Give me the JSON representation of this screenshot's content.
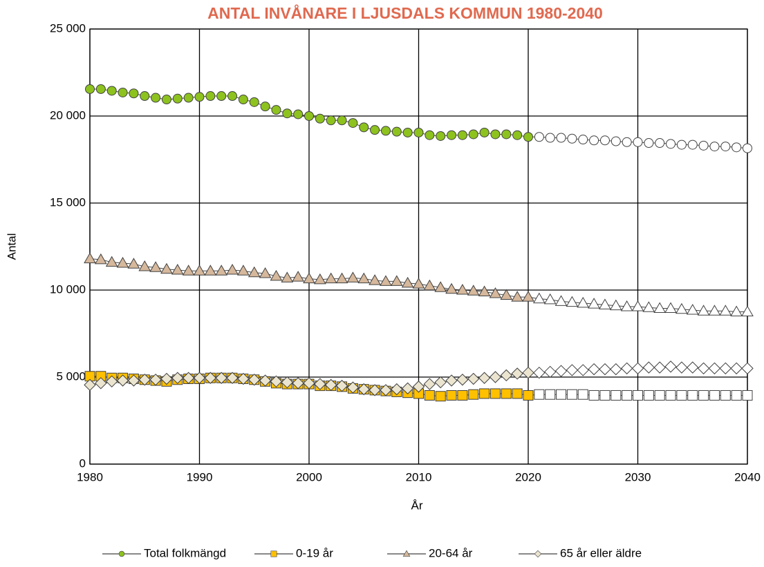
{
  "chart_data": {
    "type": "line",
    "title": "ANTAL INVÅNARE I LJUSDALS KOMMUN 1980-2040",
    "title_color": "#e0694f",
    "x_label": "År",
    "y_label": "Antal",
    "x": [
      1980,
      1981,
      1982,
      1983,
      1984,
      1985,
      1986,
      1987,
      1988,
      1989,
      1990,
      1991,
      1992,
      1993,
      1994,
      1995,
      1996,
      1997,
      1998,
      1999,
      2000,
      2001,
      2002,
      2003,
      2004,
      2005,
      2006,
      2007,
      2008,
      2009,
      2010,
      2011,
      2012,
      2013,
      2014,
      2015,
      2016,
      2017,
      2018,
      2019,
      2020,
      2021,
      2022,
      2023,
      2024,
      2025,
      2026,
      2027,
      2028,
      2029,
      2030,
      2031,
      2032,
      2033,
      2034,
      2035,
      2036,
      2037,
      2038,
      2039,
      2040
    ],
    "xlim": [
      1980,
      2040
    ],
    "xticks": [
      1980,
      1990,
      2000,
      2010,
      2020,
      2030,
      2040
    ],
    "ylim": [
      0,
      25000
    ],
    "yticks": [
      0,
      {
        "value": 5000,
        "label": "5 000"
      },
      {
        "value": 10000,
        "label": "10 000"
      },
      {
        "value": 15000,
        "label": "15 000"
      },
      {
        "value": 20000,
        "label": "20 000"
      },
      {
        "value": 25000,
        "label": "25 000"
      }
    ],
    "grid": true,
    "legend": "bottom",
    "projection_start": 2021,
    "projection_fill": "#ffffff",
    "series": [
      {
        "name": "Total folkmängd",
        "color": "#8dc21f",
        "marker": "circle",
        "values": [
          21550,
          21550,
          21450,
          21350,
          21300,
          21150,
          21050,
          20950,
          21000,
          21050,
          21100,
          21150,
          21150,
          21150,
          20950,
          20800,
          20550,
          20350,
          20150,
          20100,
          20000,
          19850,
          19750,
          19750,
          19600,
          19350,
          19200,
          19150,
          19100,
          19050,
          19050,
          18900,
          18850,
          18900,
          18900,
          18950,
          19050,
          18950,
          18950,
          18900,
          18800,
          18800,
          18750,
          18750,
          18700,
          18650,
          18600,
          18600,
          18550,
          18500,
          18500,
          18450,
          18450,
          18400,
          18350,
          18350,
          18300,
          18250,
          18250,
          18200,
          18150
        ]
      },
      {
        "name": "0-19 år",
        "color": "#ffc000",
        "marker": "square",
        "values": [
          5050,
          5050,
          4950,
          4950,
          4900,
          4850,
          4800,
          4750,
          4850,
          4900,
          4900,
          4950,
          4950,
          4950,
          4900,
          4850,
          4750,
          4650,
          4600,
          4600,
          4600,
          4500,
          4500,
          4450,
          4350,
          4300,
          4250,
          4200,
          4150,
          4100,
          4050,
          3950,
          3900,
          3950,
          3950,
          4000,
          4050,
          4050,
          4050,
          4050,
          3950,
          4000,
          4000,
          4000,
          4000,
          4000,
          3950,
          3950,
          3950,
          3950,
          3950,
          3950,
          3950,
          3950,
          3950,
          3950,
          3950,
          3950,
          3950,
          3950,
          3950
        ]
      },
      {
        "name": "20-64 år",
        "color": "#d6b89c",
        "marker": "triangle",
        "values": [
          11800,
          11750,
          11600,
          11550,
          11500,
          11350,
          11300,
          11200,
          11150,
          11100,
          11100,
          11100,
          11100,
          11150,
          11100,
          11000,
          10950,
          10800,
          10700,
          10750,
          10650,
          10600,
          10650,
          10650,
          10700,
          10650,
          10550,
          10500,
          10500,
          10400,
          10350,
          10250,
          10150,
          10050,
          10000,
          9950,
          9900,
          9800,
          9700,
          9600,
          9600,
          9500,
          9450,
          9350,
          9300,
          9250,
          9200,
          9150,
          9100,
          9050,
          9050,
          9000,
          8950,
          8950,
          8900,
          8850,
          8800,
          8800,
          8800,
          8750,
          8750
        ]
      },
      {
        "name": "65 år eller äldre",
        "color": "#ebe5d0",
        "marker": "diamond",
        "values": [
          4550,
          4650,
          4750,
          4800,
          4800,
          4850,
          4850,
          4900,
          4950,
          4950,
          4950,
          4950,
          4950,
          4950,
          4900,
          4850,
          4800,
          4750,
          4700,
          4650,
          4650,
          4600,
          4550,
          4500,
          4400,
          4300,
          4250,
          4250,
          4300,
          4350,
          4450,
          4600,
          4700,
          4800,
          4850,
          4900,
          4950,
          5000,
          5100,
          5200,
          5250,
          5250,
          5300,
          5350,
          5400,
          5400,
          5450,
          5450,
          5450,
          5500,
          5500,
          5550,
          5550,
          5600,
          5550,
          5550,
          5500,
          5500,
          5500,
          5500,
          5500
        ]
      }
    ]
  }
}
